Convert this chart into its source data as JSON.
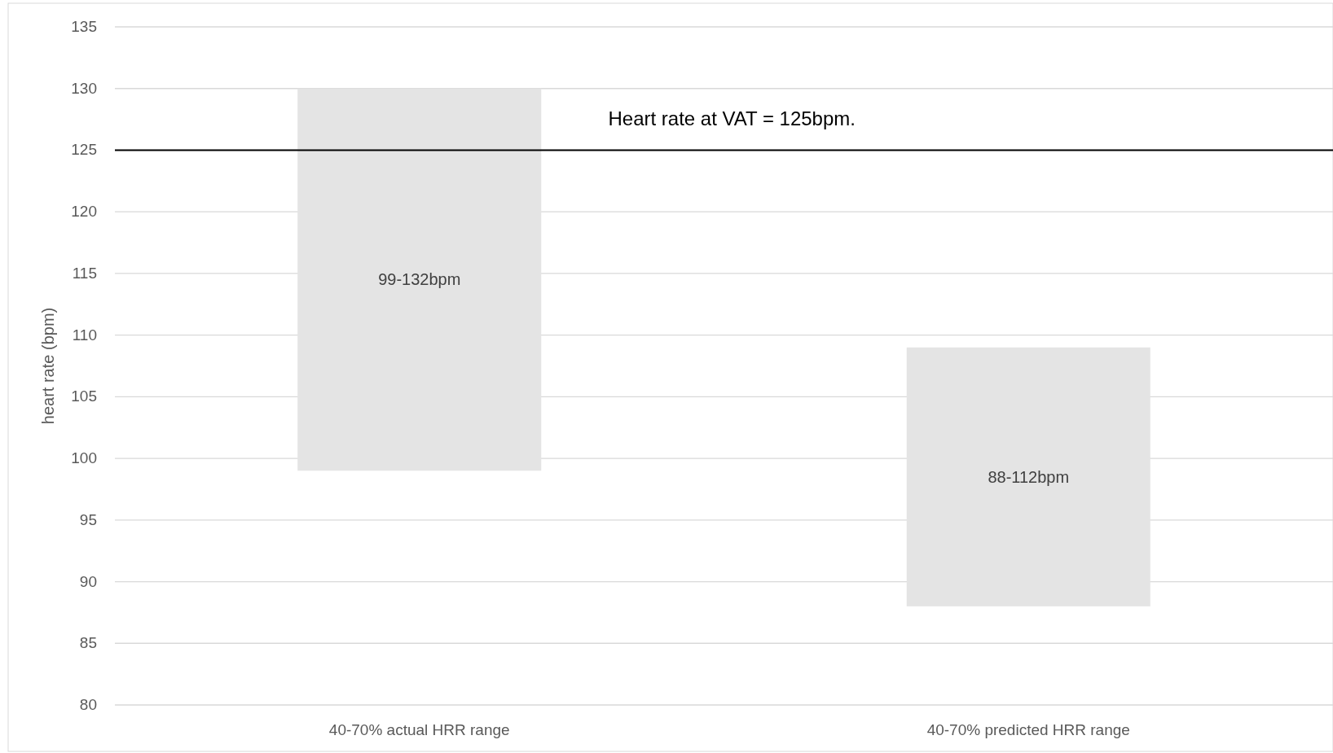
{
  "chart_data": {
    "type": "bar",
    "ylabel": "heart rate (bpm)",
    "categories": [
      "40-70% actual HRR range",
      "40-70% predicted HRR range"
    ],
    "base": [
      99,
      88
    ],
    "values": [
      31,
      21
    ],
    "value_labels": [
      "99-132bpm",
      "88-112bpm"
    ],
    "color": "#e4e4e4",
    "ylim": [
      80,
      135
    ],
    "yticks": [
      80,
      85,
      90,
      95,
      100,
      105,
      110,
      115,
      120,
      125,
      130,
      135
    ],
    "grid": "y",
    "ref_lines": [
      {
        "axis": "y",
        "value": 125,
        "label": "Heart rate at VAT = 125bpm.",
        "color": "#000000"
      }
    ]
  }
}
